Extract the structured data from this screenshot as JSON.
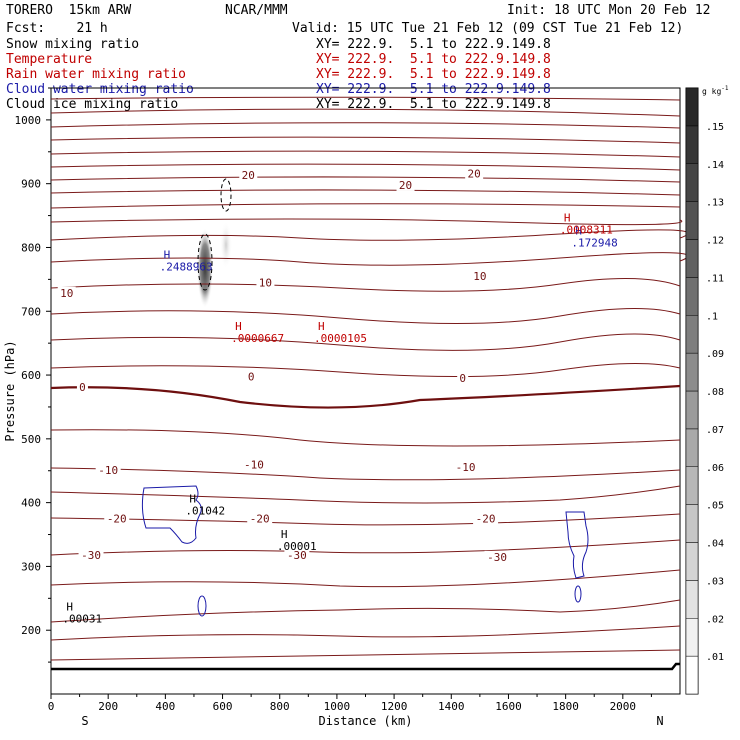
{
  "header": {
    "model": "TORERO  15km ARW",
    "org": "NCAR/MMM",
    "init": "Init: 18 UTC Mon 20 Feb 12",
    "fcst": "Fcst:    21 h",
    "valid": "Valid: 15 UTC Tue 21 Feb 12 (09 CST Tue 21 Feb 12)"
  },
  "legend": [
    {
      "label": "Snow mixing ratio",
      "xy": "XY= 222.9.  5.1 to 222.9.149.8",
      "color": "#000000"
    },
    {
      "label": "Temperature",
      "xy": "XY= 222.9.  5.1 to 222.9.149.8",
      "color": "#c00000"
    },
    {
      "label": "Rain water mixing ratio",
      "xy": "XY= 222.9.  5.1 to 222.9.149.8",
      "color": "#c00000"
    },
    {
      "label": "Cloud water mixing ratio",
      "xy": "XY= 222.9.  5.1 to 222.9.149.8",
      "color": "#1a1aa8"
    },
    {
      "label": "Cloud ice mixing ratio",
      "xy": "XY= 222.9.  5.1 to 222.9.149.8",
      "color": "#000000"
    }
  ],
  "chart_data": {
    "type": "contour-cross-section",
    "xlabel": "Distance (km)",
    "ylabel": "Pressure (hPa)",
    "xlim": [
      0,
      2200
    ],
    "ylim": [
      1050,
      100
    ],
    "x_ticks": [
      0,
      200,
      400,
      600,
      800,
      1000,
      1200,
      1400,
      1600,
      1800,
      2000
    ],
    "y_ticks": [
      200,
      300,
      400,
      500,
      600,
      700,
      800,
      900,
      1000
    ],
    "end_labels": {
      "left": "S",
      "right": "N"
    },
    "colorbar": {
      "unit": "g kg",
      "unit_exp": "-1",
      "ticks": [
        ".01",
        ".02",
        ".03",
        ".04",
        ".05",
        ".06",
        ".07",
        ".08",
        ".09",
        ".1",
        ".11",
        ".12",
        ".13",
        ".14",
        ".15"
      ]
    },
    "temperature_labels": [
      {
        "text": "-30",
        "x": 140,
        "p": 318
      },
      {
        "text": "-30",
        "x": 860,
        "p": 318
      },
      {
        "text": "-30",
        "x": 1560,
        "p": 315
      },
      {
        "text": "-20",
        "x": 230,
        "p": 375
      },
      {
        "text": "-20",
        "x": 730,
        "p": 375
      },
      {
        "text": "-20",
        "x": 1520,
        "p": 375
      },
      {
        "text": "-10",
        "x": 200,
        "p": 451
      },
      {
        "text": "-10",
        "x": 710,
        "p": 460
      },
      {
        "text": "-10",
        "x": 1450,
        "p": 456
      },
      {
        "text": "0",
        "x": 110,
        "p": 581
      },
      {
        "text": "0",
        "x": 700,
        "p": 598
      },
      {
        "text": "0",
        "x": 1440,
        "p": 595
      },
      {
        "text": "10",
        "x": 55,
        "p": 729
      },
      {
        "text": "10",
        "x": 750,
        "p": 745
      },
      {
        "text": "10",
        "x": 1500,
        "p": 755
      },
      {
        "text": "20",
        "x": 690,
        "p": 914
      },
      {
        "text": "20",
        "x": 1240,
        "p": 898
      },
      {
        "text": "20",
        "x": 1480,
        "p": 916
      }
    ],
    "maxima": [
      {
        "value": ".00031",
        "x": 40,
        "p": 218,
        "color": "#000000"
      },
      {
        "value": ".00001",
        "x": 790,
        "p": 332,
        "color": "#000000"
      },
      {
        "value": ".01042",
        "x": 470,
        "p": 388,
        "color": "#000000"
      },
      {
        "value": ".0000667",
        "x": 630,
        "p": 658,
        "color": "#c00000"
      },
      {
        "value": ".0000105",
        "x": 920,
        "p": 658,
        "color": "#c00000"
      },
      {
        "value": ".2488963",
        "x": 380,
        "p": 770,
        "color": "#1a1aa8"
      },
      {
        "value": ".172948",
        "x": 1820,
        "p": 808,
        "color": "#1a1aa8"
      },
      {
        "value": ".0008311",
        "x": 1780,
        "p": 828,
        "color": "#c00000"
      }
    ]
  }
}
